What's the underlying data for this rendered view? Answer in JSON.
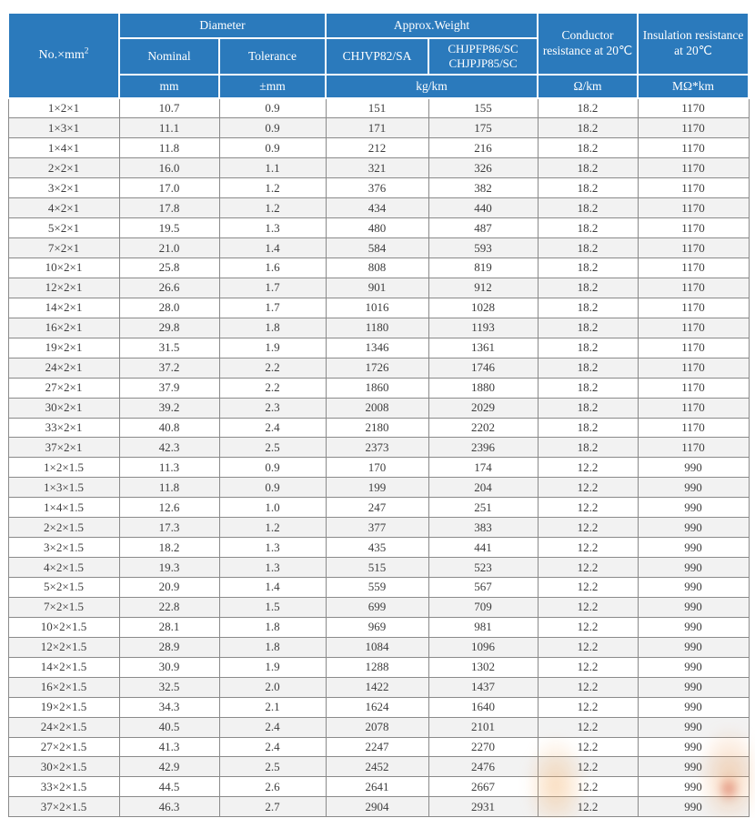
{
  "table": {
    "colors": {
      "header_bg": "#2b7abc",
      "header_text": "#ffffff",
      "row_bg": "#ffffff",
      "row_alt_bg": "#f2f2f2",
      "border": "#8a8a8a",
      "text": "#3d3d3d"
    },
    "header": {
      "corner": {
        "base": "No.×mm",
        "sup": "2"
      },
      "groups": {
        "diameter": "Diameter",
        "weight": "Approx.Weight",
        "conductor": "Conductor resistance at 20℃",
        "insulation": "Insulation resistance at 20℃"
      },
      "sub": {
        "nominal": "Nominal",
        "tolerance": "Tolerance",
        "weight_a": "CHJVP82/SA",
        "weight_b_line1": "CHJPFP86/SC",
        "weight_b_line2": "CHJPJP85/SC"
      },
      "units": {
        "nominal": "mm",
        "tolerance": "±mm",
        "weight": "kg/km",
        "conductor": "Ω/km",
        "insulation": "MΩ*km"
      }
    },
    "rows": [
      [
        "1×2×1",
        "10.7",
        "0.9",
        "151",
        "155",
        "18.2",
        "1170"
      ],
      [
        "1×3×1",
        "11.1",
        "0.9",
        "171",
        "175",
        "18.2",
        "1170"
      ],
      [
        "1×4×1",
        "11.8",
        "0.9",
        "212",
        "216",
        "18.2",
        "1170"
      ],
      [
        "2×2×1",
        "16.0",
        "1.1",
        "321",
        "326",
        "18.2",
        "1170"
      ],
      [
        "3×2×1",
        "17.0",
        "1.2",
        "376",
        "382",
        "18.2",
        "1170"
      ],
      [
        "4×2×1",
        "17.8",
        "1.2",
        "434",
        "440",
        "18.2",
        "1170"
      ],
      [
        "5×2×1",
        "19.5",
        "1.3",
        "480",
        "487",
        "18.2",
        "1170"
      ],
      [
        "7×2×1",
        "21.0",
        "1.4",
        "584",
        "593",
        "18.2",
        "1170"
      ],
      [
        "10×2×1",
        "25.8",
        "1.6",
        "808",
        "819",
        "18.2",
        "1170"
      ],
      [
        "12×2×1",
        "26.6",
        "1.7",
        "901",
        "912",
        "18.2",
        "1170"
      ],
      [
        "14×2×1",
        "28.0",
        "1.7",
        "1016",
        "1028",
        "18.2",
        "1170"
      ],
      [
        "16×2×1",
        "29.8",
        "1.8",
        "1180",
        "1193",
        "18.2",
        "1170"
      ],
      [
        "19×2×1",
        "31.5",
        "1.9",
        "1346",
        "1361",
        "18.2",
        "1170"
      ],
      [
        "24×2×1",
        "37.2",
        "2.2",
        "1726",
        "1746",
        "18.2",
        "1170"
      ],
      [
        "27×2×1",
        "37.9",
        "2.2",
        "1860",
        "1880",
        "18.2",
        "1170"
      ],
      [
        "30×2×1",
        "39.2",
        "2.3",
        "2008",
        "2029",
        "18.2",
        "1170"
      ],
      [
        "33×2×1",
        "40.8",
        "2.4",
        "2180",
        "2202",
        "18.2",
        "1170"
      ],
      [
        "37×2×1",
        "42.3",
        "2.5",
        "2373",
        "2396",
        "18.2",
        "1170"
      ],
      [
        "1×2×1.5",
        "11.3",
        "0.9",
        "170",
        "174",
        "12.2",
        "990"
      ],
      [
        "1×3×1.5",
        "11.8",
        "0.9",
        "199",
        "204",
        "12.2",
        "990"
      ],
      [
        "1×4×1.5",
        "12.6",
        "1.0",
        "247",
        "251",
        "12.2",
        "990"
      ],
      [
        "2×2×1.5",
        "17.3",
        "1.2",
        "377",
        "383",
        "12.2",
        "990"
      ],
      [
        "3×2×1.5",
        "18.2",
        "1.3",
        "435",
        "441",
        "12.2",
        "990"
      ],
      [
        "4×2×1.5",
        "19.3",
        "1.3",
        "515",
        "523",
        "12.2",
        "990"
      ],
      [
        "5×2×1.5",
        "20.9",
        "1.4",
        "559",
        "567",
        "12.2",
        "990"
      ],
      [
        "7×2×1.5",
        "22.8",
        "1.5",
        "699",
        "709",
        "12.2",
        "990"
      ],
      [
        "10×2×1.5",
        "28.1",
        "1.8",
        "969",
        "981",
        "12.2",
        "990"
      ],
      [
        "12×2×1.5",
        "28.9",
        "1.8",
        "1084",
        "1096",
        "12.2",
        "990"
      ],
      [
        "14×2×1.5",
        "30.9",
        "1.9",
        "1288",
        "1302",
        "12.2",
        "990"
      ],
      [
        "16×2×1.5",
        "32.5",
        "2.0",
        "1422",
        "1437",
        "12.2",
        "990"
      ],
      [
        "19×2×1.5",
        "34.3",
        "2.1",
        "1624",
        "1640",
        "12.2",
        "990"
      ],
      [
        "24×2×1.5",
        "40.5",
        "2.4",
        "2078",
        "2101",
        "12.2",
        "990"
      ],
      [
        "27×2×1.5",
        "41.3",
        "2.4",
        "2247",
        "2270",
        "12.2",
        "990"
      ],
      [
        "30×2×1.5",
        "42.9",
        "2.5",
        "2452",
        "2476",
        "12.2",
        "990"
      ],
      [
        "33×2×1.5",
        "44.5",
        "2.6",
        "2641",
        "2667",
        "12.2",
        "990"
      ],
      [
        "37×2×1.5",
        "46.3",
        "2.7",
        "2904",
        "2931",
        "12.2",
        "990"
      ]
    ]
  }
}
